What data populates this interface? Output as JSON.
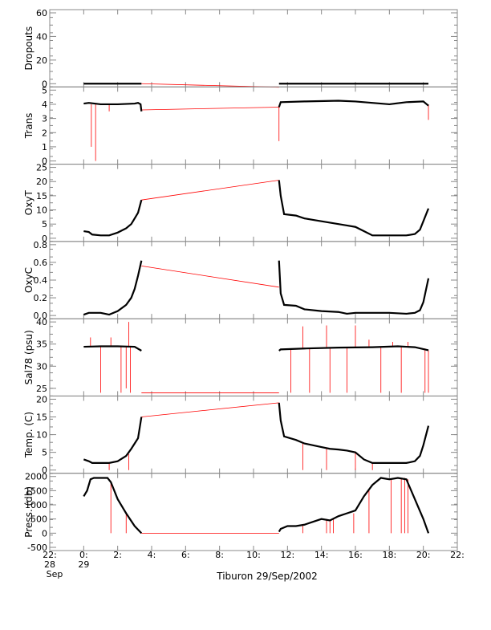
{
  "colors": {
    "series": "#000000",
    "gap": "#ff0000",
    "frame": "#888888"
  },
  "x_axis": {
    "ticks": [
      {
        "v": -2,
        "l1": "22:",
        "l2": "28",
        "l3": "Sep"
      },
      {
        "v": 0,
        "l1": "0:",
        "l2": "29",
        "l3": ""
      },
      {
        "v": 2,
        "l1": "2:",
        "l2": "",
        "l3": ""
      },
      {
        "v": 4,
        "l1": "4:",
        "l2": "",
        "l3": ""
      },
      {
        "v": 6,
        "l1": "6:",
        "l2": "",
        "l3": ""
      },
      {
        "v": 8,
        "l1": "8:",
        "l2": "",
        "l3": ""
      },
      {
        "v": 10,
        "l1": "10:",
        "l2": "",
        "l3": ""
      },
      {
        "v": 12,
        "l1": "12:",
        "l2": "",
        "l3": ""
      },
      {
        "v": 14,
        "l1": "14:",
        "l2": "",
        "l3": ""
      },
      {
        "v": 16,
        "l1": "16:",
        "l2": "",
        "l3": ""
      },
      {
        "v": 18,
        "l1": "18:",
        "l2": "",
        "l3": ""
      },
      {
        "v": 20,
        "l1": "20:",
        "l2": "",
        "l3": ""
      },
      {
        "v": 22,
        "l1": "22:",
        "l2": "",
        "l3": ""
      }
    ],
    "xlim": [
      -2,
      22
    ],
    "caption": "Tiburon 29/Sep/2002"
  },
  "chart_data": [
    {
      "type": "line",
      "ylabel": "Dropouts",
      "ylim": [
        0,
        60
      ],
      "yticks": [
        "60",
        "40",
        "20",
        "0"
      ],
      "ytick_values": [
        60,
        40,
        20,
        0
      ],
      "segment_a": {
        "x": [
          0,
          3.4
        ],
        "y": [
          0,
          0
        ]
      },
      "segment_b": {
        "x": [
          11.5,
          20.3
        ],
        "y": [
          0,
          0
        ]
      },
      "gap": {
        "x": [
          3.4,
          11.5
        ],
        "y": [
          0,
          -3
        ]
      },
      "spikes": []
    },
    {
      "type": "line",
      "ylabel": "Trans",
      "ylim": [
        0,
        5
      ],
      "yticks": [
        "5",
        "4",
        "3",
        "2",
        "1",
        "0"
      ],
      "ytick_values": [
        5,
        4,
        3,
        2,
        1,
        0
      ],
      "segment_a": {
        "x": [
          0,
          0.3,
          1,
          2,
          3,
          3.2,
          3.35,
          3.4
        ],
        "y": [
          4.05,
          4.1,
          4.0,
          4.0,
          4.05,
          4.1,
          4.0,
          3.5
        ]
      },
      "segment_b": {
        "x": [
          11.5,
          11.6,
          13,
          15,
          16,
          17,
          18,
          19,
          20,
          20.3
        ],
        "y": [
          3.8,
          4.15,
          4.2,
          4.25,
          4.2,
          4.1,
          4.0,
          4.15,
          4.2,
          3.9
        ]
      },
      "gap": {
        "x": [
          3.4,
          11.5
        ],
        "y": [
          3.6,
          3.8
        ]
      },
      "spikes": [
        {
          "x": 0.45,
          "y0": 4.0,
          "y1": 1.0
        },
        {
          "x": 0.7,
          "y0": 4.0,
          "y1": 0.0
        },
        {
          "x": 1.5,
          "y0": 4.0,
          "y1": 3.5
        },
        {
          "x": 11.5,
          "y0": 3.9,
          "y1": 1.4
        },
        {
          "x": 20.3,
          "y0": 4.0,
          "y1": 2.9
        }
      ]
    },
    {
      "type": "line",
      "ylabel": "OxyT",
      "ylim": [
        0,
        25
      ],
      "yticks": [
        "25",
        "20",
        "15",
        "10",
        "5",
        "0"
      ],
      "ytick_values": [
        25,
        20,
        15,
        10,
        5,
        0
      ],
      "segment_a": {
        "x": [
          0,
          0.3,
          0.5,
          1.0,
          1.5,
          2.0,
          2.5,
          2.8,
          3.0,
          3.2,
          3.4
        ],
        "y": [
          2.5,
          2.2,
          1.3,
          1.0,
          1.0,
          2.0,
          3.5,
          5.0,
          7.0,
          9.0,
          13.5
        ]
      },
      "segment_b": {
        "x": [
          11.5,
          11.6,
          11.8,
          12.5,
          13.0,
          13.5,
          14.0,
          14.5,
          15.0,
          15.5,
          16.0,
          16.5,
          17.0,
          17.5,
          18.0,
          18.5,
          19.0,
          19.5,
          19.8,
          20.0,
          20.3
        ],
        "y": [
          20.5,
          15.0,
          8.5,
          8.0,
          7.0,
          6.5,
          6.0,
          5.5,
          5.0,
          4.5,
          4.0,
          2.5,
          1.0,
          1.0,
          1.0,
          1.0,
          1.0,
          1.5,
          3.0,
          6.0,
          10.5
        ]
      },
      "gap": {
        "x": [
          3.4,
          11.5
        ],
        "y": [
          13.5,
          20.5
        ]
      },
      "spikes": []
    },
    {
      "type": "line",
      "ylabel": "OxyC",
      "ylim": [
        0,
        0.8
      ],
      "yticks": [
        "0.8",
        "0.6",
        "0.4",
        "0.2",
        "0.0"
      ],
      "ytick_values": [
        0.8,
        0.6,
        0.4,
        0.2,
        0.0
      ],
      "segment_a": {
        "x": [
          0,
          0.3,
          1.0,
          1.5,
          2.0,
          2.5,
          2.8,
          3.0,
          3.2,
          3.4
        ],
        "y": [
          0.01,
          0.03,
          0.03,
          0.01,
          0.05,
          0.12,
          0.2,
          0.3,
          0.45,
          0.62
        ]
      },
      "segment_b": {
        "x": [
          11.5,
          11.6,
          11.8,
          12.5,
          13.0,
          14.0,
          15.0,
          15.5,
          16.0,
          17.0,
          18.0,
          19.0,
          19.5,
          19.8,
          20.0,
          20.3
        ],
        "y": [
          0.62,
          0.25,
          0.12,
          0.11,
          0.07,
          0.05,
          0.04,
          0.02,
          0.03,
          0.03,
          0.03,
          0.02,
          0.03,
          0.06,
          0.15,
          0.42
        ]
      },
      "gap": {
        "x": [
          3.4,
          11.5
        ],
        "y": [
          0.56,
          0.32
        ]
      },
      "spikes": []
    },
    {
      "type": "line",
      "ylabel": "Sal78 (psu)",
      "ylim": [
        24,
        40
      ],
      "yticks": [
        "40",
        "35",
        "30",
        "25"
      ],
      "ytick_values": [
        40,
        35,
        30,
        25
      ],
      "segment_a": {
        "x": [
          0,
          1.0,
          2.0,
          3.0,
          3.4
        ],
        "y": [
          34.4,
          34.5,
          34.5,
          34.4,
          33.5
        ]
      },
      "segment_b": {
        "x": [
          11.5,
          11.6,
          13,
          15,
          17,
          18.5,
          19.5,
          20.3
        ],
        "y": [
          33.5,
          33.8,
          34.0,
          34.2,
          34.3,
          34.5,
          34.3,
          33.6
        ]
      },
      "gap": {
        "x": [
          3.4,
          11.5
        ],
        "y": [
          24.0,
          24.0
        ]
      },
      "spikes": [
        {
          "x": 0.4,
          "y0": 34.4,
          "y1": 36.5
        },
        {
          "x": 1.0,
          "y0": 34.4,
          "y1": 24.0
        },
        {
          "x": 1.6,
          "y0": 34.4,
          "y1": 36.5
        },
        {
          "x": 2.2,
          "y0": 34.4,
          "y1": 24.0
        },
        {
          "x": 2.5,
          "y0": 34.4,
          "y1": 25.0
        },
        {
          "x": 2.65,
          "y0": 34.4,
          "y1": 40.0
        },
        {
          "x": 2.75,
          "y0": 34.4,
          "y1": 24.0
        },
        {
          "x": 12.2,
          "y0": 34.0,
          "y1": 24.0
        },
        {
          "x": 12.9,
          "y0": 34.0,
          "y1": 39.0
        },
        {
          "x": 13.3,
          "y0": 34.0,
          "y1": 24.0
        },
        {
          "x": 14.3,
          "y0": 34.1,
          "y1": 39.2
        },
        {
          "x": 14.5,
          "y0": 34.1,
          "y1": 24.0
        },
        {
          "x": 15.5,
          "y0": 34.2,
          "y1": 24.0
        },
        {
          "x": 16.0,
          "y0": 34.2,
          "y1": 39.2
        },
        {
          "x": 16.8,
          "y0": 34.3,
          "y1": 36.0
        },
        {
          "x": 17.5,
          "y0": 34.3,
          "y1": 24.0
        },
        {
          "x": 18.2,
          "y0": 34.4,
          "y1": 35.5
        },
        {
          "x": 18.7,
          "y0": 34.4,
          "y1": 24.0
        },
        {
          "x": 19.1,
          "y0": 34.4,
          "y1": 35.5
        },
        {
          "x": 20.1,
          "y0": 34.0,
          "y1": 24.0
        },
        {
          "x": 20.3,
          "y0": 33.6,
          "y1": 24.0
        }
      ]
    },
    {
      "type": "line",
      "ylabel": "Temp. (C)",
      "ylim": [
        0,
        20
      ],
      "yticks": [
        "20",
        "15",
        "10",
        "5",
        "0"
      ],
      "ytick_values": [
        20,
        15,
        10,
        5,
        0
      ],
      "segment_a": {
        "x": [
          0,
          0.3,
          0.5,
          1.0,
          1.5,
          2.0,
          2.5,
          2.8,
          3.0,
          3.2,
          3.4
        ],
        "y": [
          3.0,
          2.5,
          2.0,
          2.0,
          2.0,
          2.5,
          4.0,
          6.0,
          7.5,
          9.0,
          15.0
        ]
      },
      "segment_b": {
        "x": [
          11.5,
          11.6,
          11.8,
          12.5,
          13.0,
          13.5,
          14.0,
          14.5,
          15.0,
          15.5,
          16.0,
          16.5,
          17.0,
          17.5,
          18.0,
          18.5,
          19.0,
          19.5,
          19.8,
          20.0,
          20.3
        ],
        "y": [
          19.0,
          14.0,
          9.5,
          8.5,
          7.5,
          7.0,
          6.5,
          6.0,
          5.8,
          5.5,
          5.0,
          3.0,
          2.0,
          2.0,
          2.0,
          2.0,
          2.0,
          2.5,
          4.0,
          7.0,
          12.5
        ]
      },
      "gap": {
        "x": [
          3.4,
          11.5
        ],
        "y": [
          15.0,
          19.0
        ]
      },
      "spikes": [
        {
          "x": 1.5,
          "y0": 2.0,
          "y1": 0.0
        },
        {
          "x": 2.65,
          "y0": 4.5,
          "y1": 0.0
        },
        {
          "x": 12.9,
          "y0": 7.5,
          "y1": 0.0
        },
        {
          "x": 14.3,
          "y0": 6.2,
          "y1": 0.0
        },
        {
          "x": 16.0,
          "y0": 5.0,
          "y1": 0.0
        },
        {
          "x": 17.0,
          "y0": 2.0,
          "y1": 0.0
        }
      ]
    },
    {
      "type": "line",
      "ylabel": "Press. (db)",
      "ylim": [
        -500,
        2000
      ],
      "yticks": [
        "2000",
        "1500",
        "1000",
        "500",
        "0",
        "-500"
      ],
      "ytick_values": [
        2000,
        1500,
        1000,
        500,
        0,
        -500
      ],
      "segment_a": {
        "x": [
          0,
          0.2,
          0.4,
          0.6,
          1.0,
          1.4,
          1.6,
          2.0,
          2.5,
          3.0,
          3.4
        ],
        "y": [
          1300,
          1500,
          1900,
          1950,
          1950,
          1950,
          1800,
          1200,
          700,
          250,
          0
        ]
      },
      "segment_b": {
        "x": [
          11.5,
          11.6,
          12.0,
          12.5,
          13.0,
          13.5,
          14.0,
          14.5,
          15.0,
          15.5,
          16.0,
          16.5,
          17.0,
          17.5,
          18.0,
          18.5,
          19.0,
          19.5,
          20.0,
          20.3
        ],
        "y": [
          50,
          150,
          250,
          250,
          300,
          400,
          500,
          450,
          600,
          700,
          800,
          1300,
          1700,
          1950,
          1900,
          1950,
          1900,
          1200,
          500,
          0
        ]
      },
      "gap": {
        "x": [
          3.4,
          11.5
        ],
        "y": [
          0,
          0
        ]
      },
      "spikes": [
        {
          "x": 1.6,
          "y0": 1800,
          "y1": 0
        },
        {
          "x": 2.5,
          "y0": 700,
          "y1": 0
        },
        {
          "x": 12.9,
          "y0": 300,
          "y1": 0
        },
        {
          "x": 14.3,
          "y0": 500,
          "y1": 0
        },
        {
          "x": 14.5,
          "y0": 450,
          "y1": 0
        },
        {
          "x": 14.7,
          "y0": 500,
          "y1": 0
        },
        {
          "x": 15.9,
          "y0": 700,
          "y1": 0
        },
        {
          "x": 16.8,
          "y0": 1500,
          "y1": 0
        },
        {
          "x": 18.1,
          "y0": 1900,
          "y1": 0
        },
        {
          "x": 18.7,
          "y0": 1950,
          "y1": 0
        },
        {
          "x": 18.9,
          "y0": 1950,
          "y1": 0
        },
        {
          "x": 19.1,
          "y0": 1900,
          "y1": 0
        }
      ]
    }
  ]
}
